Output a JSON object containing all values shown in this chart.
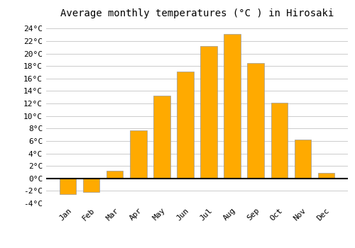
{
  "title": "Average monthly temperatures (°C ) in Hirosaki",
  "months": [
    "Jan",
    "Feb",
    "Mar",
    "Apr",
    "May",
    "Jun",
    "Jul",
    "Aug",
    "Sep",
    "Oct",
    "Nov",
    "Dec"
  ],
  "temperatures": [
    -2.5,
    -2.2,
    1.2,
    7.7,
    13.2,
    17.1,
    21.2,
    23.1,
    18.5,
    12.1,
    6.2,
    0.9
  ],
  "bar_color": "#FFAA00",
  "bar_edge_color": "#999999",
  "background_color": "#ffffff",
  "grid_color": "#cccccc",
  "ylim": [
    -4,
    25
  ],
  "yticks": [
    -4,
    -2,
    0,
    2,
    4,
    6,
    8,
    10,
    12,
    14,
    16,
    18,
    20,
    22,
    24
  ],
  "title_fontsize": 10,
  "tick_fontsize": 8,
  "font_family": "monospace",
  "bar_width": 0.7
}
